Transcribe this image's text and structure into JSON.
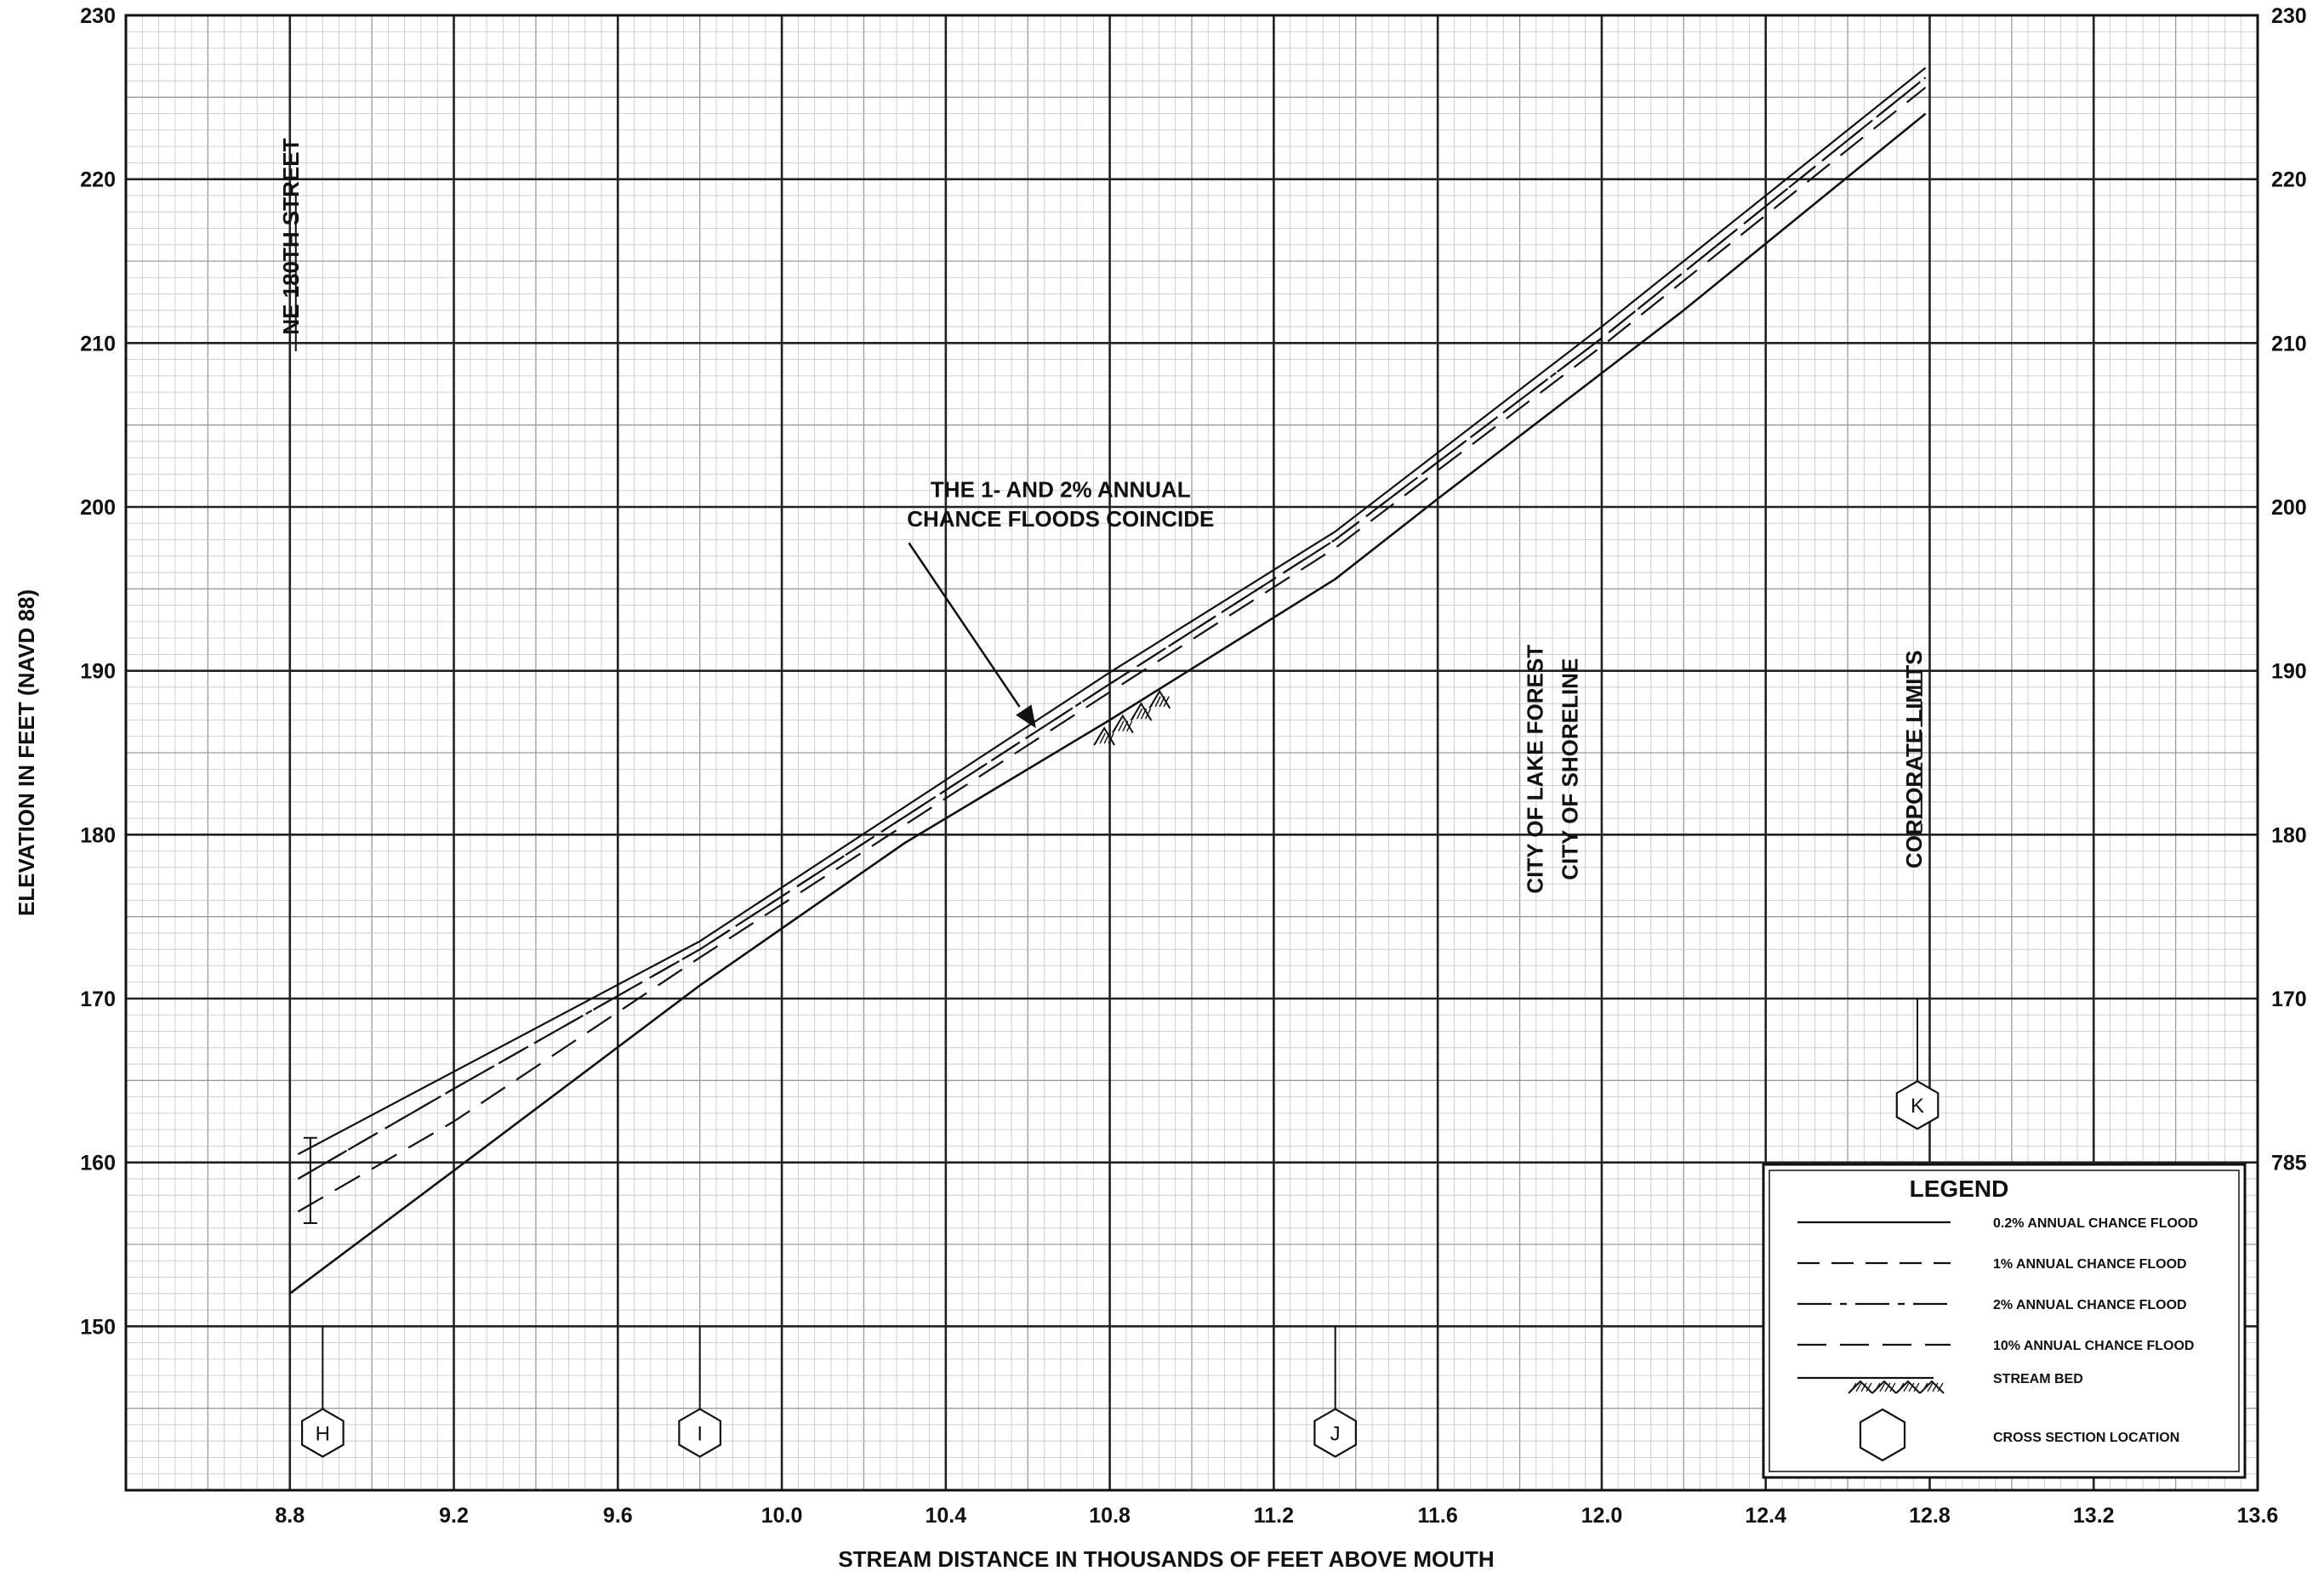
{
  "chart_data": {
    "type": "line",
    "xlabel": "STREAM DISTANCE IN THOUSANDS OF FEET ABOVE MOUTH",
    "ylabel": "ELEVATION IN FEET (NAVD 88)",
    "xlim": [
      8.4,
      13.6
    ],
    "ylim": [
      140,
      230
    ],
    "x_ticks": [
      "8.8",
      "9.2",
      "9.6",
      "10.0",
      "10.4",
      "10.8",
      "11.2",
      "11.6",
      "12.0",
      "12.4",
      "12.8",
      "13.2",
      "13.6"
    ],
    "y_ticks_left": [
      "150",
      "160",
      "170",
      "180",
      "190",
      "200",
      "210",
      "220",
      "230"
    ],
    "y_ticks_right": [
      "785",
      "170",
      "180",
      "190",
      "200",
      "210",
      "220",
      "230"
    ],
    "grid": true,
    "series": [
      {
        "name": "0.2% ANNUAL CHANCE FLOOD",
        "style": "solid",
        "x": [
          8.82,
          9.8,
          10.8,
          11.35,
          12.0,
          12.79
        ],
        "y": [
          160.5,
          173.5,
          189.9,
          198.5,
          211.0,
          226.8
        ]
      },
      {
        "name": "1% ANNUAL CHANCE FLOOD",
        "style": "dash",
        "x": [
          8.82,
          9.2,
          9.8,
          10.8,
          11.35,
          12.0,
          12.79
        ],
        "y": [
          159.0,
          164.5,
          173.0,
          189.2,
          198.0,
          210.3,
          226.2
        ]
      },
      {
        "name": "2% ANNUAL CHANCE FLOOD",
        "style": "dashdot",
        "x": [
          8.82,
          9.2,
          9.8,
          10.8,
          11.35,
          12.0,
          12.79
        ],
        "y": [
          159.0,
          164.5,
          173.0,
          189.2,
          198.0,
          210.3,
          226.2
        ]
      },
      {
        "name": "10% ANNUAL CHANCE FLOOD",
        "style": "longdash",
        "x": [
          8.82,
          9.2,
          9.8,
          10.8,
          11.35,
          12.0,
          12.79
        ],
        "y": [
          157.0,
          162.5,
          172.5,
          188.7,
          197.5,
          209.8,
          225.6
        ]
      },
      {
        "name": "STREAM BED",
        "style": "bed",
        "x": [
          8.8,
          9.2,
          9.8,
          10.3,
          10.8,
          11.35,
          11.6,
          12.2,
          12.79
        ],
        "y": [
          152.0,
          159.5,
          170.8,
          179.5,
          187.0,
          195.6,
          200.5,
          212.0,
          224.0
        ]
      }
    ],
    "cross_sections": [
      {
        "label": "H",
        "x": 8.88,
        "y": 143.5,
        "tick_top": 150
      },
      {
        "label": "I",
        "x": 9.8,
        "y": 143.5,
        "tick_top": 150
      },
      {
        "label": "J",
        "x": 11.35,
        "y": 143.5,
        "tick_top": 150
      },
      {
        "label": "K",
        "x": 12.77,
        "y": 163.5,
        "tick_top": 170
      }
    ],
    "annotations": {
      "coincide_line1": "THE 1- AND 2%  ANNUAL",
      "coincide_line2": "CHANCE FLOODS COINCIDE",
      "street": "NE 180TH STREET",
      "city1": "CITY OF LAKE FOREST",
      "city2": "CITY OF SHORELINE",
      "corporate": "CORPORATE LIMITS"
    },
    "legend": {
      "title": "LEGEND",
      "placement": "bottom-right",
      "items": [
        {
          "label": "0.2% ANNUAL CHANCE FLOOD",
          "style": "solid"
        },
        {
          "label": "1% ANNUAL CHANCE FLOOD",
          "style": "dash"
        },
        {
          "label": "2% ANNUAL CHANCE FLOOD",
          "style": "dashdot"
        },
        {
          "label": "10% ANNUAL CHANCE FLOOD",
          "style": "longdash"
        },
        {
          "label": "STREAM BED",
          "style": "bed"
        },
        {
          "label": "CROSS SECTION LOCATION",
          "style": "hexagon"
        }
      ]
    }
  }
}
